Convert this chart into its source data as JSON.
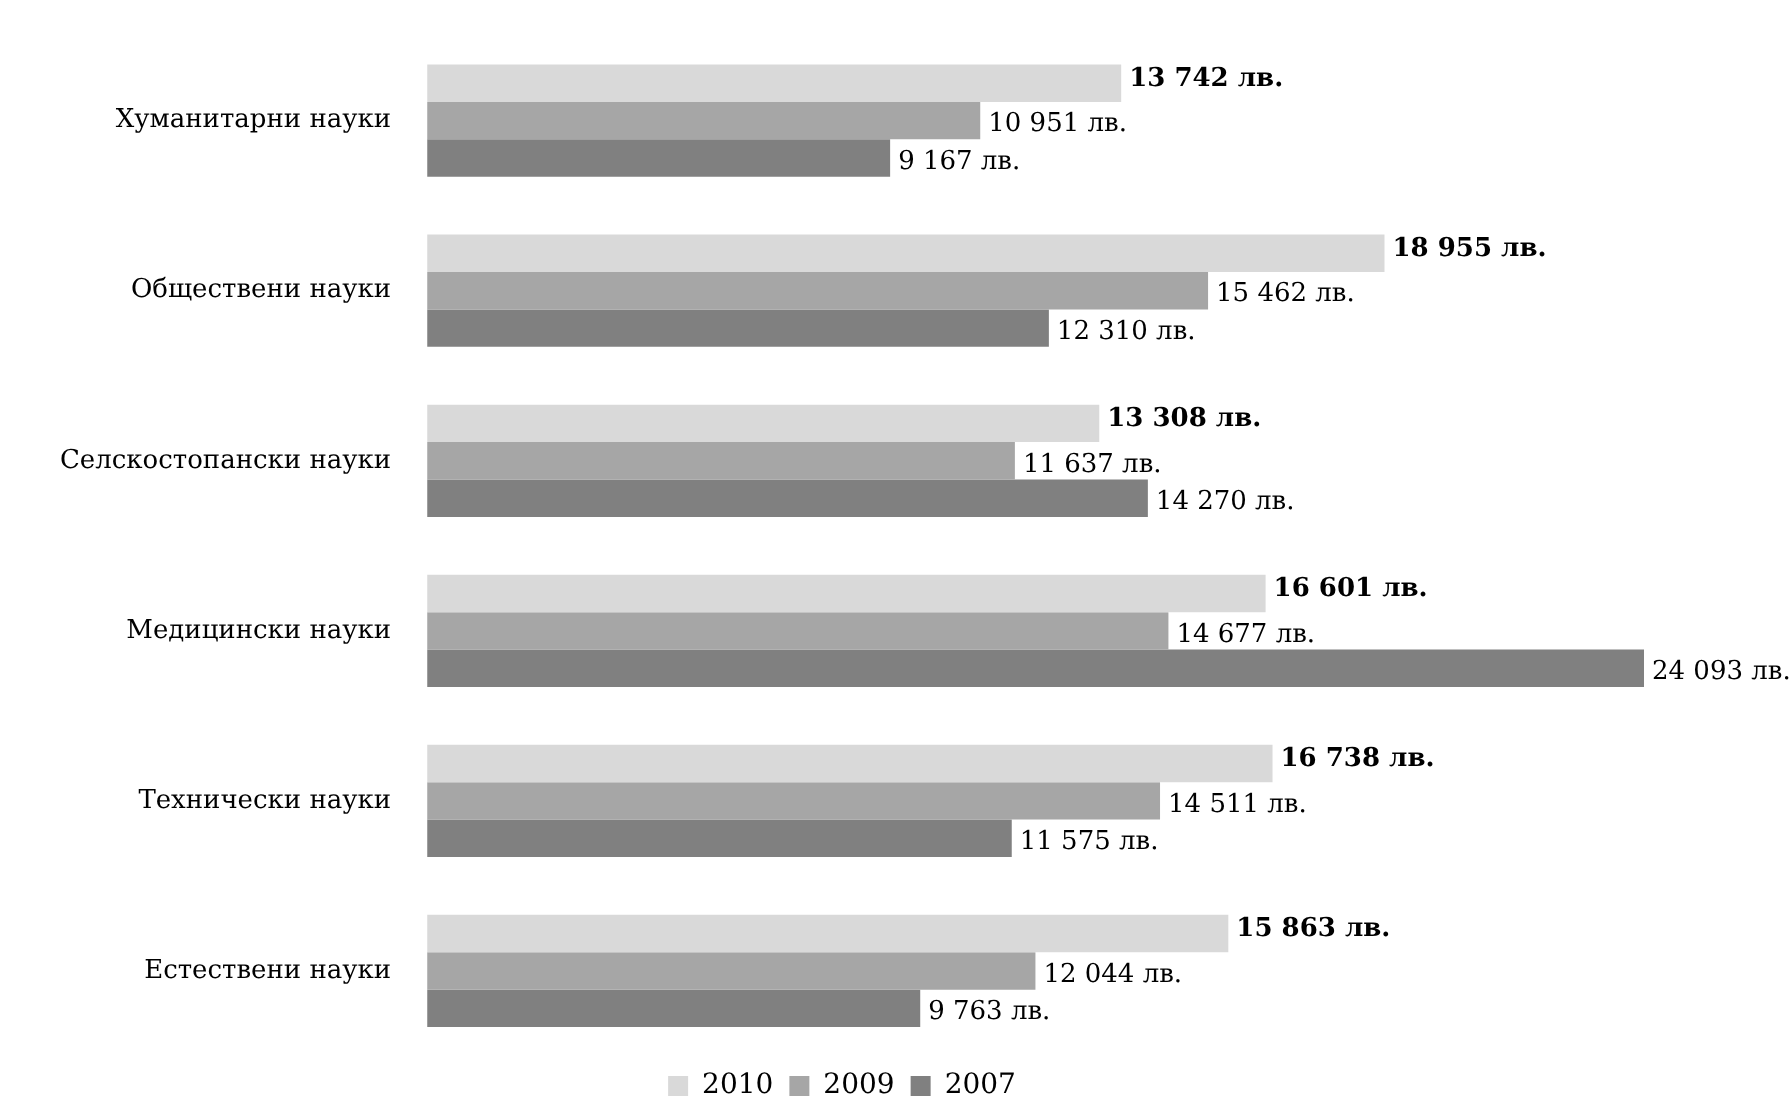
{
  "chart_data": {
    "type": "bar",
    "orientation": "horizontal",
    "categories": [
      "Хуманитарни науки",
      "Обществени науки",
      "Селскостопански науки",
      "Медицински науки",
      "Технически науки",
      "Естествени науки"
    ],
    "series": [
      {
        "name": "2010",
        "color": "#d9d9d9",
        "values": [
          13742,
          18955,
          13308,
          16601,
          16738,
          15863
        ],
        "value_labels": [
          "13 742 лв.",
          "18 955 лв.",
          "13 308 лв.",
          "16 601 лв.",
          "16 738 лв.",
          "15 863 лв."
        ]
      },
      {
        "name": "2009",
        "color": "#a6a6a6",
        "values": [
          10951,
          15462,
          11637,
          14677,
          14511,
          12044
        ],
        "value_labels": [
          "10 951 лв.",
          "15 462 лв.",
          "11 637 лв.",
          "14 677 лв.",
          "14 511 лв.",
          "12 044 лв."
        ]
      },
      {
        "name": "2007",
        "color": "#808080",
        "values": [
          9167,
          12310,
          14270,
          24093,
          11575,
          9763
        ],
        "value_labels": [
          "9 167 лв.",
          "12 310 лв.",
          "14 270 лв.",
          "24 093 лв.",
          "11 575 лв.",
          "9 763 лв."
        ]
      }
    ],
    "legend": "bottom"
  }
}
